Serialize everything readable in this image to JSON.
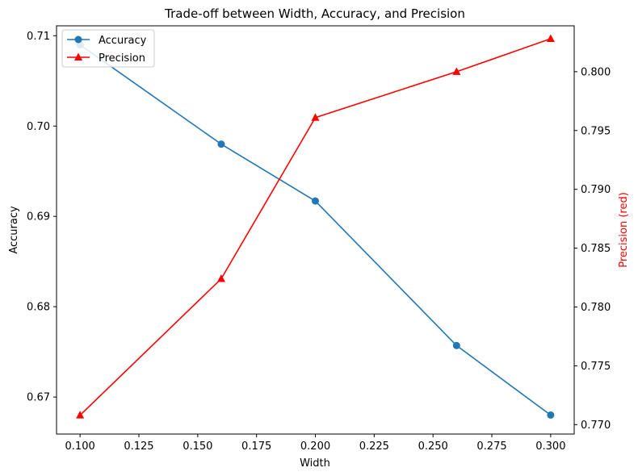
{
  "chart_data": {
    "type": "line",
    "title": "Trade-off between Width, Accuracy, and Precision",
    "xlabel": "Width",
    "ylabel_left": "Accuracy",
    "ylabel_right": "Precision (red)",
    "x": [
      0.1,
      0.16,
      0.2,
      0.26,
      0.3
    ],
    "xlim": [
      0.09,
      0.31
    ],
    "ylim_left": [
      0.6659,
      0.7111
    ],
    "ylim_right": [
      0.7692,
      0.8039
    ],
    "x_ticks": [
      "0.100",
      "0.125",
      "0.150",
      "0.175",
      "0.200",
      "0.225",
      "0.250",
      "0.275",
      "0.300"
    ],
    "y_ticks_left": [
      "0.67",
      "0.68",
      "0.69",
      "0.70",
      "0.71"
    ],
    "y_ticks_right": [
      "0.770",
      "0.775",
      "0.780",
      "0.785",
      "0.790",
      "0.795",
      "0.800"
    ],
    "grid": false,
    "legend_position": "top-left",
    "series": [
      {
        "name": "Accuracy",
        "axis": "left",
        "marker": "circle",
        "color": "#1f77b4",
        "values": [
          0.709,
          0.698,
          0.6917,
          0.6757,
          0.668
        ]
      },
      {
        "name": "Precision",
        "axis": "right",
        "marker": "triangle",
        "color": "#ff0000",
        "values": [
          0.7708,
          0.7824,
          0.7961,
          0.8,
          0.8028
        ]
      }
    ]
  }
}
